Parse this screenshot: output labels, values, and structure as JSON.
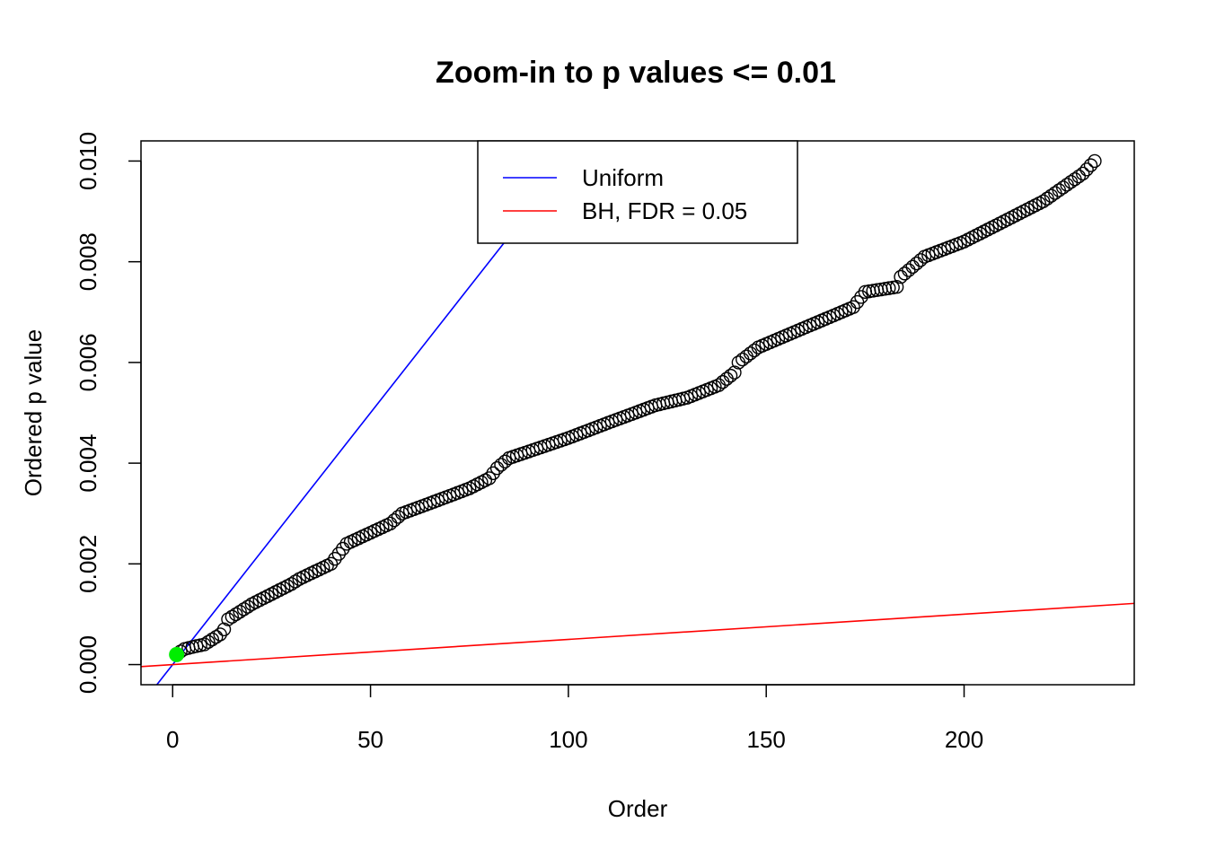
{
  "chart_data": {
    "type": "scatter",
    "title": "Zoom-in to p values <= 0.01",
    "xlabel": "Order",
    "ylabel": "Ordered p value",
    "xlim": [
      -8,
      243
    ],
    "ylim": [
      -0.0004,
      0.0104
    ],
    "x_ticks": [
      0,
      50,
      100,
      150,
      200
    ],
    "y_ticks": [
      0.0,
      0.002,
      0.004,
      0.006,
      0.008,
      0.01
    ],
    "x_tick_labels": [
      "0",
      "50",
      "100",
      "150",
      "200"
    ],
    "y_tick_labels": [
      "0.000",
      "0.002",
      "0.004",
      "0.006",
      "0.008",
      "0.010"
    ],
    "grid": false,
    "point_count": 233,
    "points_knots": [
      [
        1,
        0.0002
      ],
      [
        2,
        0.00026
      ],
      [
        3,
        0.00031
      ],
      [
        4,
        0.00033
      ],
      [
        5,
        0.00035
      ],
      [
        8,
        0.0004
      ],
      [
        12,
        0.0006
      ],
      [
        13,
        0.0007
      ],
      [
        14,
        0.0009
      ],
      [
        20,
        0.0012
      ],
      [
        25,
        0.0014
      ],
      [
        30,
        0.0016
      ],
      [
        32,
        0.0017
      ],
      [
        40,
        0.002
      ],
      [
        44,
        0.0024
      ],
      [
        55,
        0.0028
      ],
      [
        58,
        0.003
      ],
      [
        70,
        0.00335
      ],
      [
        75,
        0.0035
      ],
      [
        80,
        0.0037
      ],
      [
        82,
        0.0039
      ],
      [
        85,
        0.0041
      ],
      [
        100,
        0.0045
      ],
      [
        110,
        0.0048
      ],
      [
        122,
        0.00515
      ],
      [
        130,
        0.0053
      ],
      [
        138,
        0.00555
      ],
      [
        142,
        0.0058
      ],
      [
        143,
        0.006
      ],
      [
        148,
        0.0063
      ],
      [
        160,
        0.0067
      ],
      [
        172,
        0.0071
      ],
      [
        175,
        0.0074
      ],
      [
        183,
        0.0075
      ],
      [
        184,
        0.0077
      ],
      [
        190,
        0.0081
      ],
      [
        200,
        0.0084
      ],
      [
        210,
        0.0088
      ],
      [
        220,
        0.0092
      ],
      [
        230,
        0.00975
      ],
      [
        233,
        0.01
      ]
    ],
    "highlight_point": {
      "x": 1,
      "y": 0.0002,
      "color": "#00ee00"
    },
    "lines": [
      {
        "name": "Uniform",
        "color": "#0000ff",
        "intercept": 0.0,
        "slope": 0.0001
      },
      {
        "name": "BH, FDR = 0.05",
        "color": "#ff0000",
        "intercept": 0.0,
        "slope": 5e-06
      }
    ],
    "legend": {
      "position": "top",
      "entries": [
        {
          "label": "Uniform",
          "color": "#0000ff"
        },
        {
          "label": "BH, FDR = 0.05",
          "color": "#ff0000"
        }
      ]
    }
  }
}
